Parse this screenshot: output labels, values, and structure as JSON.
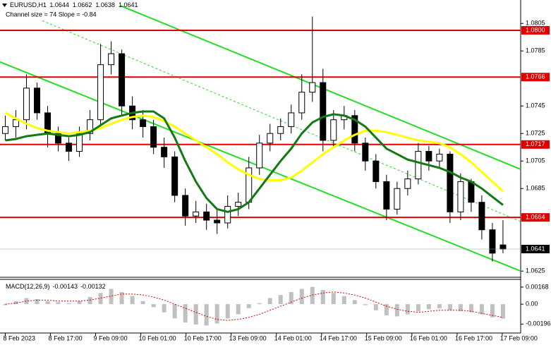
{
  "chart_data": [
    {
      "type": "candlestick",
      "title": "EURUSD,H1",
      "subtitle": "Channel size = 74 Slope = -0.84",
      "xlim": [
        -0.5,
        48.67
      ],
      "xticks": [
        {
          "value": 0,
          "label": "8 Feb 2023"
        },
        {
          "value": 4.27,
          "label": "8 Feb 17:00"
        },
        {
          "value": 8.53,
          "label": "9 Feb 09:00"
        },
        {
          "value": 12.8,
          "label": "10 Feb 01:00"
        },
        {
          "value": 17.07,
          "label": "10 Feb 17:00"
        },
        {
          "value": 21.33,
          "label": "13 Feb 09:00"
        },
        {
          "value": 25.6,
          "label": "14 Feb 01:00"
        },
        {
          "value": 29.87,
          "label": "14 Feb 17:00"
        },
        {
          "value": 34.13,
          "label": "15 Feb 09:00"
        },
        {
          "value": 38.4,
          "label": "16 Feb 01:00"
        },
        {
          "value": 42.67,
          "label": "16 Feb 17:00"
        },
        {
          "value": 46.93,
          "label": "17 Feb 09:00"
        }
      ],
      "ylim": [
        1.0621,
        1.0821
      ],
      "yticks": [
        1.0625,
        1.0685,
        1.0705,
        1.0725,
        1.0745,
        1.0785,
        1.0805
      ],
      "open": [
        1.0725,
        1.073,
        1.0735,
        1.0758,
        1.074,
        1.0725,
        1.0718,
        1.0712,
        1.0725,
        1.0735,
        1.0775,
        1.0783,
        1.0745,
        1.0735,
        1.073,
        1.0715,
        1.0708,
        1.068,
        1.0665,
        1.0668,
        1.0662,
        1.066,
        1.0672,
        1.0675,
        1.07,
        1.0718,
        1.0725,
        1.073,
        1.074,
        1.0755,
        1.0762,
        1.072,
        1.0735,
        1.0738,
        1.0718,
        1.0705,
        1.069,
        1.067,
        1.0685,
        1.0692,
        1.0712,
        1.0705,
        1.071,
        1.0668,
        1.069,
        1.0675,
        1.0655,
        1.0644
      ],
      "high": [
        1.0738,
        1.0742,
        1.0768,
        1.0762,
        1.0745,
        1.073,
        1.0722,
        1.073,
        1.0742,
        1.079,
        1.0792,
        1.0786,
        1.0752,
        1.0742,
        1.0735,
        1.0722,
        1.0712,
        1.0685,
        1.0676,
        1.0674,
        1.067,
        1.068,
        1.0682,
        1.0708,
        1.0724,
        1.0732,
        1.0736,
        1.0746,
        1.0768,
        1.081,
        1.0772,
        1.0742,
        1.0745,
        1.0742,
        1.0722,
        1.071,
        1.0695,
        1.069,
        1.0698,
        1.0718,
        1.0716,
        1.0714,
        1.0712,
        1.0696,
        1.0692,
        1.068,
        1.066,
        1.0662
      ],
      "low": [
        1.072,
        1.0722,
        1.0728,
        1.0735,
        1.0715,
        1.0712,
        1.0705,
        1.0708,
        1.072,
        1.073,
        1.0768,
        1.0738,
        1.0728,
        1.0722,
        1.071,
        1.07,
        1.0675,
        1.0658,
        1.066,
        1.0655,
        1.0652,
        1.0656,
        1.0665,
        1.067,
        1.0695,
        1.0712,
        1.072,
        1.0725,
        1.0735,
        1.0748,
        1.0712,
        1.0715,
        1.0728,
        1.0712,
        1.0698,
        1.0685,
        1.0662,
        1.0666,
        1.068,
        1.0688,
        1.0698,
        1.07,
        1.066,
        1.0662,
        1.0668,
        1.0648,
        1.0632,
        1.0638
      ],
      "close": [
        1.073,
        1.0735,
        1.0758,
        1.074,
        1.0725,
        1.0718,
        1.0712,
        1.0725,
        1.0735,
        1.0775,
        1.0783,
        1.0745,
        1.0735,
        1.073,
        1.0715,
        1.0708,
        1.068,
        1.0665,
        1.0668,
        1.0662,
        1.066,
        1.0672,
        1.0675,
        1.07,
        1.0718,
        1.0725,
        1.073,
        1.074,
        1.0755,
        1.0762,
        1.072,
        1.0735,
        1.0738,
        1.0718,
        1.0705,
        1.069,
        1.067,
        1.0685,
        1.0692,
        1.0712,
        1.0705,
        1.071,
        1.0668,
        1.069,
        1.0675,
        1.0655,
        1.0638,
        1.0641
      ],
      "series": [
        {
          "color": "#ffff00",
          "values": [
            1.074,
            1.0736,
            1.0732,
            1.0729,
            1.0727,
            1.0726,
            1.0725,
            1.0726,
            1.0727,
            1.0729,
            1.0732,
            1.0735,
            1.0737,
            1.0738,
            1.0737,
            1.0734,
            1.073,
            1.0725,
            1.072,
            1.0715,
            1.071,
            1.0704,
            1.0699,
            1.0695,
            1.0692,
            1.0691,
            1.0691,
            1.0693,
            1.0698,
            1.0704,
            1.071,
            1.0715,
            1.072,
            1.0724,
            1.0727,
            1.0727,
            1.0726,
            1.0724,
            1.0722,
            1.072,
            1.0719,
            1.0718,
            1.0715,
            1.071,
            1.0704,
            1.0697,
            1.069,
            1.0683
          ]
        },
        {
          "color": "#137a13",
          "values": [
            1.072,
            1.0721,
            1.0723,
            1.0724,
            1.0725,
            1.0724,
            1.0723,
            1.0724,
            1.0726,
            1.0731,
            1.0736,
            1.0738,
            1.074,
            1.0741,
            1.0741,
            1.0736,
            1.0722,
            1.0705,
            1.069,
            1.0678,
            1.067,
            1.0668,
            1.067,
            1.0675,
            1.0685,
            1.0695,
            1.0705,
            1.0714,
            1.0725,
            1.0733,
            1.0737,
            1.0739,
            1.0738,
            1.0735,
            1.073,
            1.0722,
            1.0714,
            1.071,
            1.0706,
            1.0704,
            1.0702,
            1.07,
            1.0697,
            1.0693,
            1.069,
            1.0685,
            1.0679,
            1.0673
          ]
        }
      ],
      "trendlines": [
        {
          "x": [
            10.83,
            48.67
          ],
          "y": [
            1.0818,
            1.0699
          ],
          "color": "#22dd22"
        },
        {
          "x": [
            -0.5,
            48.67
          ],
          "y": [
            1.0777,
            1.0625
          ],
          "color": "#22dd22"
        },
        {
          "x": [
            3.5,
            48.67
          ],
          "y": [
            1.0807,
            1.0661
          ],
          "color": "#22dd22",
          "dashed": true
        }
      ],
      "levels": [
        {
          "value": 1.08,
          "label": "1.0800"
        },
        1.0766,
        1.0717,
        1.0664
      ],
      "level_color": "#e00000"
    },
    {
      "type": "macd",
      "title": "MACD(12,26,9)",
      "ylim": [
        -0.0027,
        0.0023
      ],
      "yticks": [
        -0.00196,
        {
          "value": 0,
          "label": "0.00"
        },
        0.00168
      ],
      "values": [
        -0.0001,
        0.0003,
        0.0006,
        0.0005,
        0.0003,
        0.0002,
        0.0001,
        0.0003,
        0.0007,
        0.0011,
        0.0015,
        0.0012,
        0.0008,
        0.0003,
        -0.0003,
        -0.0008,
        -0.0014,
        -0.0018,
        -0.002,
        -0.0021,
        -0.0019,
        -0.0014,
        -0.001,
        -0.0004,
        0.0001,
        0.0006,
        0.0009,
        0.0012,
        0.0015,
        0.0017,
        0.0014,
        0.0011,
        0.0008,
        0.0004,
        -0.0001,
        -0.0006,
        -0.0011,
        -0.0012,
        -0.001,
        -0.0007,
        -0.0005,
        -0.0004,
        -0.0006,
        -0.0007,
        -0.0008,
        -0.001,
        -0.0013,
        -0.00143
      ],
      "color": "#c0c0c0",
      "signal": [
        0.0,
        0.0001,
        0.0003,
        0.0004,
        0.0004,
        0.0003,
        0.0003,
        0.0003,
        0.0004,
        0.0006,
        0.0008,
        0.001,
        0.001,
        0.0009,
        0.0007,
        0.0004,
        0.0,
        -0.0004,
        -0.0008,
        -0.0012,
        -0.0015,
        -0.0016,
        -0.0015,
        -0.0013,
        -0.001,
        -0.0006,
        -0.0002,
        0.0002,
        0.0006,
        0.0009,
        0.0011,
        0.0012,
        0.0011,
        0.0009,
        0.0006,
        0.0002,
        -0.0002,
        -0.0005,
        -0.0007,
        -0.0008,
        -0.0007,
        -0.0006,
        -0.0006,
        -0.0006,
        -0.0007,
        -0.0009,
        -0.0011,
        -0.00132
      ],
      "signal_color": "#e00000"
    }
  ]
}
